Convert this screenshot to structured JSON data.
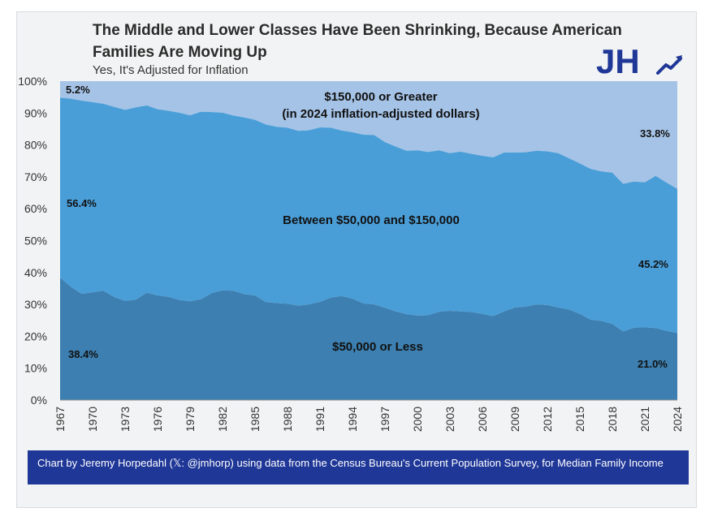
{
  "header": {
    "title": "The Middle and Lower Classes Have Been Shrinking, Because American Families Are Moving Up",
    "subtitle": "Yes, It's Adjusted for Inflation",
    "logo_text": "JH"
  },
  "footer": {
    "credit": "Chart by Jeremy Horpedahl (𝕏: @jmhorp) using data from the Census Bureau's Current Population Survey, for Median Family Income"
  },
  "colors": {
    "top_band": "#a5c3e6",
    "middle_band": "#4a9ed8",
    "bottom_band": "#3c7fb0",
    "logo": "#1f3797",
    "footer_bg": "#1f3797"
  },
  "chart_data": {
    "type": "area",
    "stacked": true,
    "title": "The Middle and Lower Classes Have Been Shrinking, Because American Families Are Moving Up",
    "subtitle": "Yes, It's Adjusted for Inflation",
    "xlabel": "",
    "ylabel": "",
    "ylim": [
      0,
      100
    ],
    "y_ticks": [
      "0%",
      "10%",
      "20%",
      "30%",
      "40%",
      "50%",
      "60%",
      "70%",
      "80%",
      "90%",
      "100%"
    ],
    "x_ticks": [
      "1967",
      "1970",
      "1973",
      "1976",
      "1979",
      "1982",
      "1985",
      "1988",
      "1991",
      "1994",
      "1997",
      "2000",
      "2003",
      "2006",
      "2009",
      "2012",
      "2015",
      "2018",
      "2021",
      "2024"
    ],
    "x": [
      1967,
      1968,
      1969,
      1970,
      1971,
      1972,
      1973,
      1974,
      1975,
      1976,
      1977,
      1978,
      1979,
      1980,
      1981,
      1982,
      1983,
      1984,
      1985,
      1986,
      1987,
      1988,
      1989,
      1990,
      1991,
      1992,
      1993,
      1994,
      1995,
      1996,
      1997,
      1998,
      1999,
      2000,
      2001,
      2002,
      2003,
      2004,
      2005,
      2006,
      2007,
      2008,
      2009,
      2010,
      2011,
      2012,
      2013,
      2014,
      2015,
      2016,
      2017,
      2018,
      2019,
      2020,
      2021,
      2022,
      2023,
      2024
    ],
    "series": [
      {
        "name": "$50,000 or Less",
        "values": [
          38.4,
          35.5,
          33.3,
          33.8,
          34.3,
          32.3,
          31.1,
          31.5,
          33.7,
          32.8,
          32.4,
          31.4,
          31.0,
          31.6,
          33.5,
          34.4,
          34.3,
          33.2,
          32.8,
          30.7,
          30.4,
          30.2,
          29.6,
          30.0,
          30.8,
          32.1,
          32.6,
          31.8,
          30.3,
          30.0,
          28.9,
          27.8,
          26.9,
          26.5,
          26.6,
          27.7,
          28.0,
          27.8,
          27.6,
          27.0,
          26.3,
          27.8,
          29.0,
          29.3,
          30.0,
          29.8,
          29.0,
          28.4,
          27.0,
          25.2,
          24.8,
          23.9,
          21.5,
          22.7,
          22.8,
          22.6,
          21.7,
          21.0
        ]
      },
      {
        "name": "Between $50,000 and $150,000",
        "values": [
          56.4,
          59.0,
          60.6,
          59.6,
          58.6,
          59.6,
          59.9,
          60.3,
          58.7,
          58.4,
          58.3,
          58.7,
          58.3,
          58.8,
          56.8,
          55.7,
          54.9,
          55.4,
          55.1,
          55.7,
          55.3,
          55.2,
          54.8,
          54.6,
          54.7,
          53.3,
          51.9,
          52.2,
          52.9,
          53.1,
          52.0,
          51.7,
          51.3,
          51.8,
          51.2,
          50.6,
          49.4,
          50.1,
          49.6,
          49.6,
          49.8,
          49.8,
          48.6,
          48.4,
          48.2,
          48.2,
          48.4,
          47.4,
          47.2,
          47.3,
          46.9,
          47.4,
          46.3,
          45.8,
          45.5,
          47.7,
          46.5,
          45.2
        ]
      },
      {
        "name": "$150,000 or Greater",
        "values": [
          5.2,
          5.5,
          6.1,
          6.6,
          7.1,
          8.1,
          9.0,
          8.2,
          7.6,
          8.8,
          9.3,
          9.9,
          10.7,
          9.6,
          9.7,
          9.9,
          10.8,
          11.4,
          12.1,
          13.6,
          14.3,
          14.6,
          15.6,
          15.4,
          14.5,
          14.6,
          15.5,
          16.0,
          16.8,
          16.9,
          19.1,
          20.5,
          21.8,
          21.7,
          22.2,
          21.7,
          22.6,
          22.1,
          22.8,
          23.4,
          23.9,
          22.4,
          22.4,
          22.3,
          21.8,
          22.0,
          22.6,
          24.2,
          25.8,
          27.5,
          28.3,
          28.7,
          32.2,
          31.5,
          31.7,
          29.7,
          31.8,
          33.8
        ]
      }
    ],
    "band_labels": {
      "top_line1": "$150,000 or Greater",
      "top_line2": "(in 2024 inflation-adjusted dollars)",
      "middle": "Between $50,000 and $150,000",
      "bottom": "$50,000 or Less"
    },
    "value_labels": {
      "top_1967": "5.2%",
      "top_2024": "33.8%",
      "middle_1967": "56.4%",
      "middle_2024": "45.2%",
      "bottom_1967": "38.4%",
      "bottom_2024": "21.0%"
    }
  }
}
